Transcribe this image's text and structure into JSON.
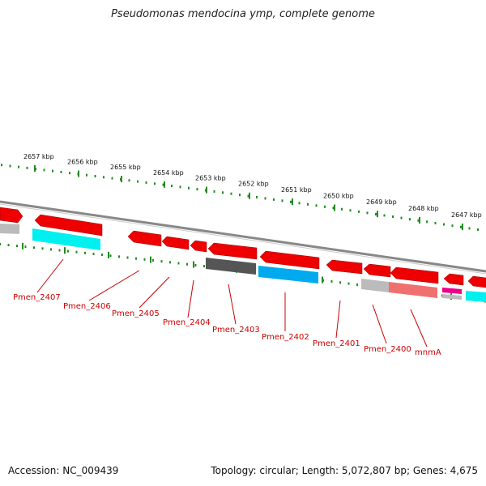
{
  "title": "Pseudomonas mendocina ymp, complete genome",
  "footer": {
    "accession": "Accession: NC_009439",
    "summary": "Topology: circular; Length: 5,072,807 bp; Genes: 4,675"
  },
  "colors": {
    "gene_red": "#ee0000",
    "gene_red_light": "#f07070",
    "cyan": "#00f0f0",
    "blue": "#00aaee",
    "gray_dark": "#555555",
    "gray_light": "#bbbbbb",
    "magenta": "#ee0088",
    "tick": "#228B22",
    "backbone": "#888888",
    "label": "#cc0000"
  },
  "scale": {
    "ticks": [
      "2657 kbp",
      "2656 kbp",
      "2655 kbp",
      "2654 kbp",
      "2653 kbp",
      "2652 kbp",
      "2651 kbp",
      "2650 kbp",
      "2649 kbp",
      "2648 kbp",
      "2647 kbp"
    ]
  },
  "genes": [
    "Pmen_2407",
    "Pmen_2406",
    "Pmen_2405",
    "Pmen_2404",
    "Pmen_2403",
    "Pmen_2402",
    "Pmen_2401",
    "Pmen_2400",
    "mnmA"
  ]
}
